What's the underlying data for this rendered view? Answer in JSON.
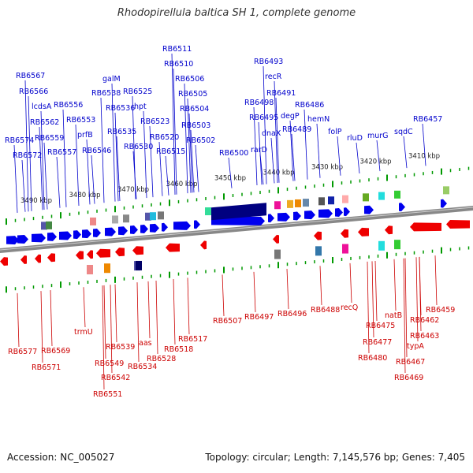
{
  "title": "Rhodopirellula baltica SH 1, complete genome",
  "footer": {
    "accession": "Accession: NC_005027",
    "summary": "Topology: circular; Length: 7,145,576 bp; Genes: 7,405"
  },
  "colors": {
    "forward": "#0000ee",
    "reverse": "#ee0000",
    "backbone": "#888888",
    "tick": "#009900"
  },
  "kbp_labels": [
    "3490 kbp",
    "3480 kbp",
    "3470 kbp",
    "3460 kbp",
    "3450 kbp",
    "3440 kbp",
    "3430 kbp",
    "3420 kbp",
    "3410 kbp"
  ],
  "top_labels": [
    "RB6567",
    "RB6566",
    "lcdsA",
    "RB6562",
    "RB6559",
    "RB6574",
    "RB6572",
    "RB6557",
    "RB6556",
    "RB6553",
    "prfB",
    "RB6546",
    "galM",
    "RB6538",
    "RB6536",
    "RB6535",
    "RB6525",
    "hpt",
    "RB6530",
    "RB6523",
    "RB6520",
    "RB6511",
    "RB6510",
    "RB6506",
    "RB6505",
    "RB6504",
    "RB6503",
    "RB6502",
    "RB6515",
    "RB6500",
    "RB6493",
    "recR",
    "RB6491",
    "RB6498",
    "RB6495",
    "rarD",
    "dnaX",
    "degP",
    "RB6489",
    "RB6486",
    "hemN",
    "folP",
    "rluD",
    "murG",
    "sqdC",
    "RB6457"
  ],
  "bottom_labels": [
    "RB6577",
    "RB6569",
    "RB6571",
    "trmU",
    "RB6539",
    "RB6549",
    "RB6542",
    "RB6551",
    "aas",
    "RB6534",
    "RB6528",
    "RB6518",
    "RB6517",
    "RB6507",
    "RB6497",
    "RB6496",
    "RB6488",
    "recQ",
    "RB6475",
    "RB6477",
    "RB6480",
    "natB",
    "RB6462",
    "RB6463",
    "typA",
    "RB6459",
    "RB6467",
    "RB6469"
  ]
}
